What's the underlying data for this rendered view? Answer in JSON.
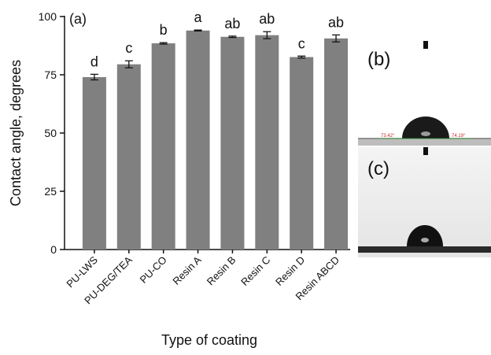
{
  "chart_data": {
    "type": "bar",
    "panel_label": "(a)",
    "y_label": "Contact angle, degrees",
    "x_label": "Type of coating",
    "categories": [
      "PU-LWS",
      "PU-DEG/TEA",
      "PU-CO",
      "Resin A",
      "Resin B",
      "Resin C",
      "Resin D",
      "Resin ABCD"
    ],
    "values": [
      74,
      79.5,
      88.5,
      94,
      91.3,
      92,
      82.6,
      90.6
    ],
    "errors": [
      1.2,
      1.5,
      0.3,
      0.2,
      0.3,
      1.5,
      0.4,
      1.5
    ],
    "annotations": [
      "d",
      "c",
      "b",
      "a",
      "ab",
      "ab",
      "c",
      "ab"
    ],
    "color": "#808080",
    "ylim": [
      0,
      100
    ],
    "yticks": [
      0,
      25,
      50,
      75,
      100
    ],
    "grid": false
  },
  "panels": {
    "b": {
      "label": "(b)",
      "left_angle": "73.42°",
      "right_angle": "74.19°"
    },
    "c": {
      "label": "(c)"
    }
  }
}
